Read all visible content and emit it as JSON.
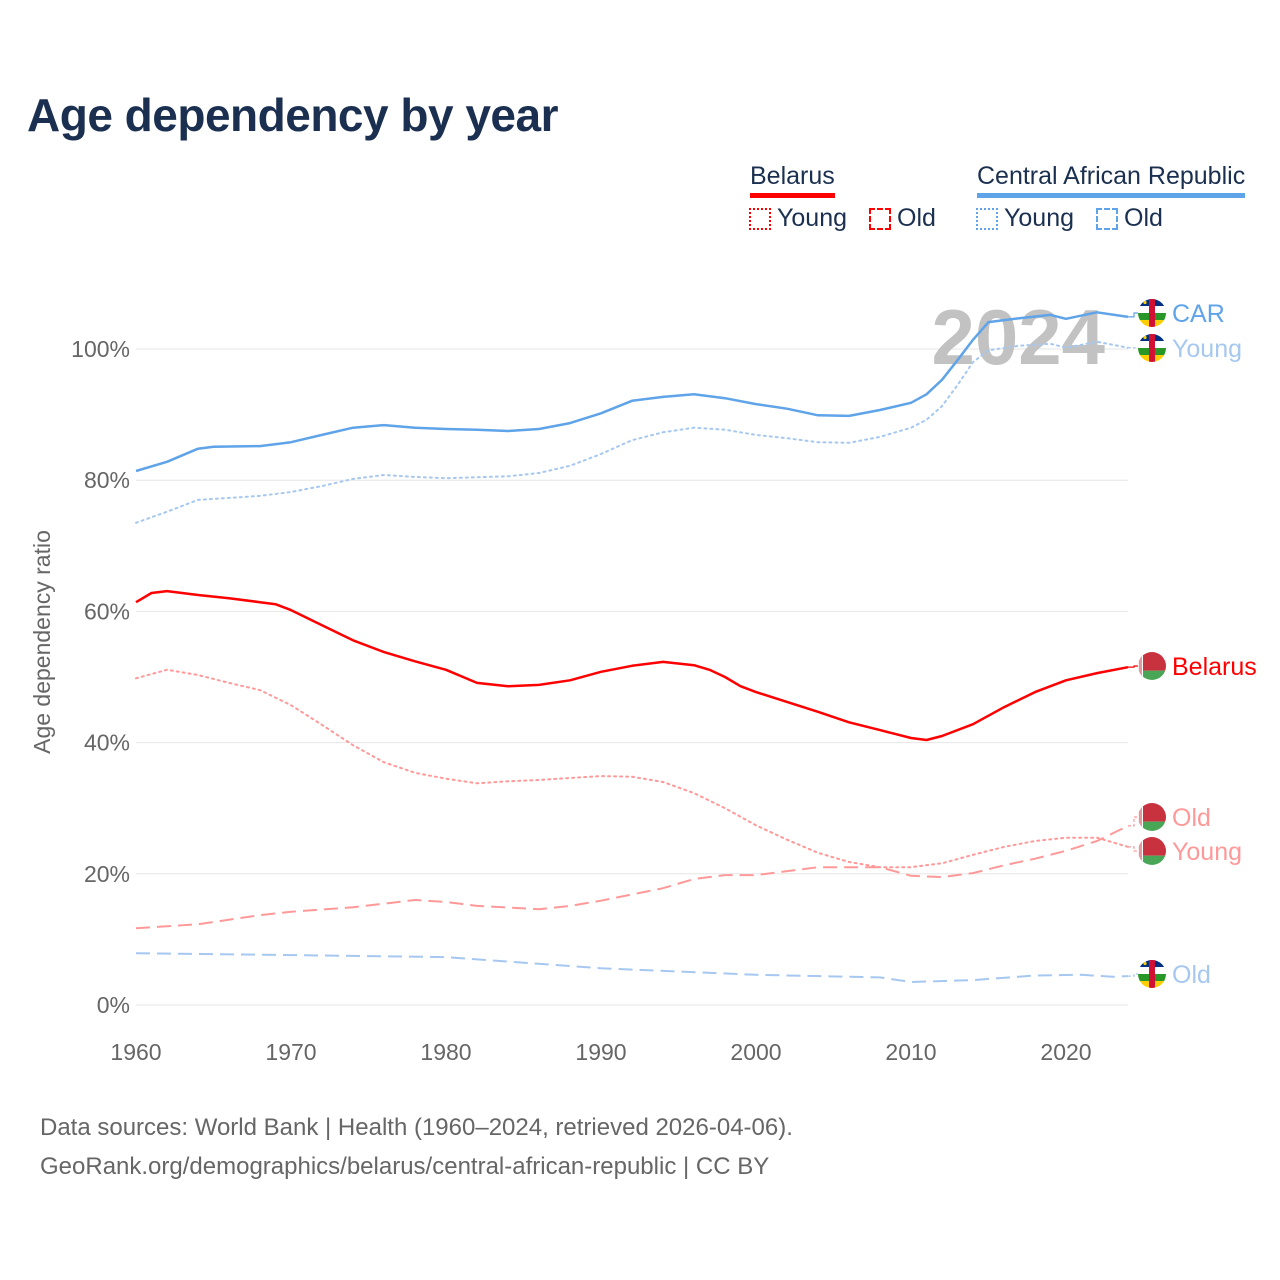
{
  "chart_data": {
    "type": "line",
    "title": "Age dependency by year",
    "ylabel": "Age dependency ratio",
    "xlabel": "",
    "xlim": [
      1960,
      2024
    ],
    "ylim": [
      0,
      110
    ],
    "xticks": [
      "1960",
      "1970",
      "1980",
      "1990",
      "2000",
      "2010",
      "2020"
    ],
    "yticks": [
      "0%",
      "20%",
      "40%",
      "60%",
      "80%",
      "100%"
    ],
    "grid": true,
    "year_watermark": "2024",
    "legend": {
      "placement": "top-right",
      "groups": [
        {
          "name": "Belarus",
          "color": "#ff0000",
          "items": [
            "Young",
            "Old"
          ]
        },
        {
          "name": "Central African Republic",
          "color": "#5fa3e8",
          "items": [
            "Young",
            "Old"
          ]
        }
      ]
    },
    "series": [
      {
        "name": "CAR",
        "country": "Central African Republic",
        "kind": "total",
        "color": "#5fa3e8",
        "style": "solid",
        "end_label": "CAR",
        "x": [
          1960,
          1962,
          1964,
          1965,
          1968,
          1970,
          1972,
          1974,
          1976,
          1978,
          1980,
          1982,
          1984,
          1986,
          1988,
          1990,
          1992,
          1994,
          1996,
          1998,
          2000,
          2002,
          2004,
          2006,
          2008,
          2010,
          2011,
          2012,
          2013,
          2014,
          2015,
          2017,
          2019,
          2020,
          2022,
          2024
        ],
        "y": [
          81.4,
          82.8,
          84.8,
          85.1,
          85.2,
          85.8,
          86.9,
          88.0,
          88.4,
          88.0,
          87.8,
          87.7,
          87.5,
          87.8,
          88.7,
          90.2,
          92.1,
          92.7,
          93.1,
          92.5,
          91.6,
          90.9,
          89.9,
          89.8,
          90.7,
          91.8,
          93.1,
          95.3,
          98.3,
          101.4,
          104.1,
          104.7,
          105.2,
          104.6,
          105.6,
          104.9
        ]
      },
      {
        "name": "CAR Young",
        "country": "Central African Republic",
        "kind": "young",
        "color": "#a6c8f0",
        "style": "dotted",
        "end_label": "Young",
        "x": [
          1960,
          1962,
          1964,
          1966,
          1968,
          1970,
          1972,
          1974,
          1976,
          1978,
          1980,
          1984,
          1986,
          1988,
          1990,
          1992,
          1994,
          1996,
          1998,
          2000,
          2002,
          2004,
          2006,
          2008,
          2010,
          2011,
          2012,
          2013,
          2014,
          2015,
          2017,
          2019,
          2020,
          2022,
          2024
        ],
        "y": [
          73.5,
          75.2,
          77.0,
          77.3,
          77.6,
          78.2,
          79.1,
          80.2,
          80.8,
          80.5,
          80.3,
          80.6,
          81.1,
          82.2,
          84.0,
          86.1,
          87.3,
          88.0,
          87.7,
          86.9,
          86.4,
          85.8,
          85.7,
          86.6,
          88.0,
          89.2,
          91.3,
          94.5,
          98.0,
          99.8,
          100.5,
          100.8,
          100.2,
          101.1,
          100.2
        ]
      },
      {
        "name": "CAR Old",
        "country": "Central African Republic",
        "kind": "old",
        "color": "#a6c8f0",
        "style": "dashed",
        "end_label": "Old",
        "x": [
          1960,
          1970,
          1980,
          1990,
          2000,
          2008,
          2010,
          2014,
          2018,
          2021,
          2023,
          2024
        ],
        "y": [
          7.9,
          7.6,
          7.3,
          5.6,
          4.6,
          4.2,
          3.5,
          3.8,
          4.5,
          4.6,
          4.3,
          4.4
        ]
      },
      {
        "name": "Belarus",
        "country": "Belarus",
        "kind": "total",
        "color": "#ff0000",
        "style": "solid",
        "end_label": "Belarus",
        "x": [
          1960,
          1961,
          1962,
          1964,
          1966,
          1968,
          1969,
          1970,
          1972,
          1974,
          1976,
          1978,
          1980,
          1982,
          1984,
          1986,
          1988,
          1990,
          1992,
          1994,
          1996,
          1997,
          1998,
          1999,
          2000,
          2002,
          2004,
          2006,
          2008,
          2010,
          2011,
          2012,
          2014,
          2016,
          2018,
          2020,
          2022,
          2024
        ],
        "y": [
          61.4,
          62.8,
          63.1,
          62.5,
          62.0,
          61.4,
          61.1,
          60.2,
          57.9,
          55.6,
          53.8,
          52.4,
          51.1,
          49.1,
          48.6,
          48.8,
          49.5,
          50.8,
          51.7,
          52.3,
          51.8,
          51.1,
          50.0,
          48.6,
          47.7,
          46.2,
          44.7,
          43.1,
          41.9,
          40.7,
          40.4,
          41.0,
          42.8,
          45.4,
          47.7,
          49.5,
          50.6,
          51.5
        ]
      },
      {
        "name": "Belarus Old",
        "country": "Belarus",
        "kind": "old",
        "color": "#ff9999",
        "style": "dashed",
        "end_label": "Old",
        "x": [
          1960,
          1964,
          1968,
          1970,
          1974,
          1978,
          1980,
          1982,
          1986,
          1988,
          1990,
          1994,
          1996,
          1998,
          2000,
          2004,
          2008,
          2010,
          2012,
          2014,
          2016,
          2018,
          2020,
          2022,
          2024
        ],
        "y": [
          11.7,
          12.3,
          13.7,
          14.2,
          14.9,
          16.0,
          15.7,
          15.1,
          14.6,
          15.1,
          15.9,
          17.8,
          19.2,
          19.8,
          19.8,
          21.0,
          21.0,
          19.7,
          19.5,
          20.1,
          21.3,
          22.3,
          23.5,
          25.0,
          27.3
        ]
      },
      {
        "name": "Belarus Young",
        "country": "Belarus",
        "kind": "young",
        "color": "#ff9999",
        "style": "dotted",
        "end_label": "Young",
        "x": [
          1960,
          1962,
          1964,
          1966,
          1968,
          1970,
          1972,
          1974,
          1976,
          1978,
          1980,
          1982,
          1984,
          1986,
          1988,
          1990,
          1992,
          1994,
          1996,
          1998,
          2000,
          2002,
          2004,
          2006,
          2008,
          2010,
          2012,
          2014,
          2016,
          2018,
          2020,
          2022,
          2024
        ],
        "y": [
          49.8,
          51.1,
          50.3,
          49.1,
          48.0,
          45.7,
          42.7,
          39.6,
          37.0,
          35.4,
          34.5,
          33.8,
          34.1,
          34.3,
          34.6,
          34.9,
          34.8,
          34.0,
          32.3,
          30.0,
          27.4,
          25.2,
          23.2,
          21.8,
          21.0,
          21.0,
          21.6,
          22.9,
          24.1,
          25.0,
          25.5,
          25.5,
          24.1
        ]
      }
    ]
  },
  "footer": {
    "line1": "Data sources: World Bank | Health (1960–2024, retrieved 2026-04-06).",
    "line2": "GeoRank.org/demographics/belarus/central-african-republic | CC BY"
  }
}
